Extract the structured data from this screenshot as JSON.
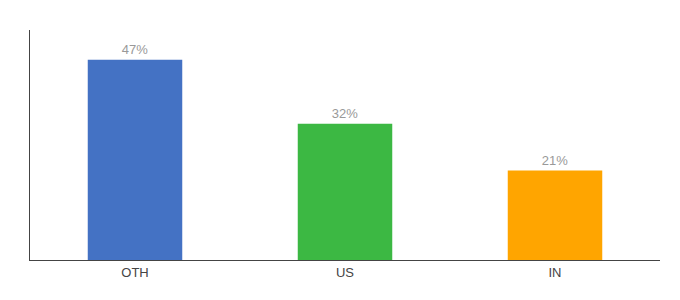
{
  "chart_data": {
    "type": "bar",
    "categories": [
      "OTH",
      "US",
      "IN"
    ],
    "values": [
      47,
      32,
      21
    ],
    "value_labels": [
      "47%",
      "32%",
      "21%"
    ],
    "colors": [
      "#4472C4",
      "#3CB843",
      "#FFA500"
    ],
    "ylim": [
      0,
      54
    ],
    "grid": false,
    "data_labels": true,
    "tick_labels": "x"
  }
}
